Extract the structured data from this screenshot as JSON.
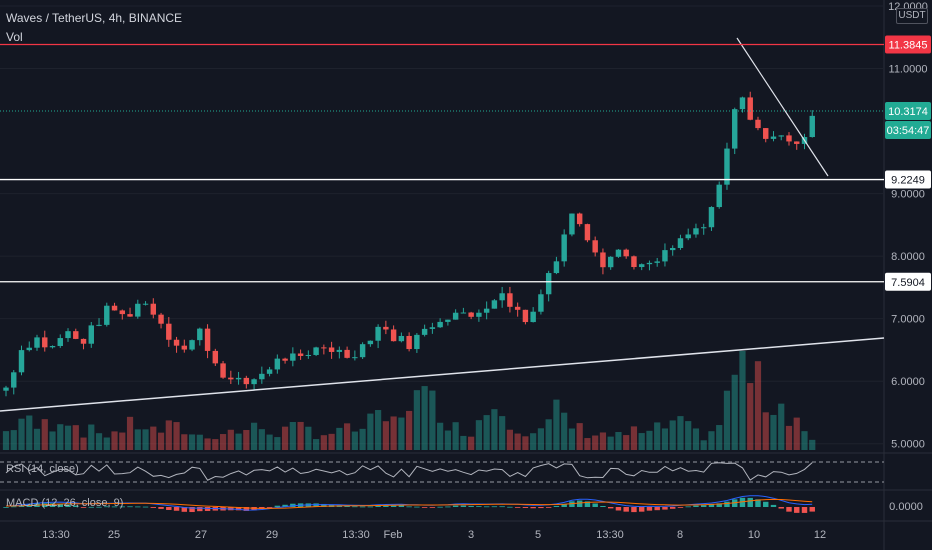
{
  "header": {
    "symbol_line": "Waves / TetherUS, 4h, BINANCE",
    "volume_label": "Vol",
    "currency_button": "USDT"
  },
  "price_axis": {
    "ticks": [
      "12.0000",
      "11.0000",
      "9.0000",
      "8.0000",
      "7.0000",
      "6.0000",
      "5.0000"
    ],
    "ticks_values": [
      12,
      11,
      9,
      8,
      7,
      6,
      5
    ],
    "line_labels": [
      {
        "text": "11.3845",
        "value": 11.3845,
        "color": "#f23645"
      },
      {
        "text": "9.2249",
        "value": 9.2249,
        "color": "#ffffff"
      },
      {
        "text": "7.5904",
        "value": 7.5904,
        "color": "#ffffff"
      }
    ],
    "last_price": "10.3174",
    "countdown": "03:54:47"
  },
  "time_axis": {
    "ticks": [
      "13:30",
      "25",
      "27",
      "29",
      "13:30",
      "Feb",
      "3",
      "5",
      "13:30",
      "8",
      "10",
      "12"
    ]
  },
  "indicators": {
    "rsi_label": "RSI (14, close)",
    "macd_label": "MACD (12, 26, close, 9)",
    "macd_value": "0.0000"
  },
  "colors": {
    "background": "#131722",
    "up": "#26a69a",
    "down": "#ef5350",
    "resistance": "#f23645",
    "support": "#ffffff",
    "last_price": "#22ab94"
  },
  "chart_data": {
    "type": "candlestick",
    "symbol": "Waves / TetherUS",
    "interval": "4h",
    "exchange": "BINANCE",
    "ylim": [
      4.9,
      12.0
    ],
    "horizontal_levels": [
      11.3845,
      9.2249,
      7.5904
    ],
    "last_price": 10.3174,
    "close_path": [
      5.9,
      6.5,
      6.7,
      6.5,
      6.8,
      6.6,
      6.9,
      7.2,
      7.0,
      7.3,
      7.1,
      6.7,
      6.5,
      6.8,
      6.3,
      6.0,
      5.95,
      6.1,
      6.3,
      6.4,
      6.3,
      6.6,
      6.5,
      6.4,
      6.6,
      6.9,
      6.7,
      6.6,
      6.8,
      7.0,
      7.1,
      7.0,
      7.2,
      7.4,
      7.2,
      6.9,
      7.6,
      8.0,
      8.8,
      8.3,
      7.9,
      8.1,
      7.9,
      7.8,
      8.0,
      8.2,
      8.4,
      8.5,
      9.3,
      10.6,
      10.2,
      9.8,
      10.0,
      9.7,
      10.3
    ],
    "volume_path": [
      0.2,
      0.35,
      0.25,
      0.3,
      0.4,
      0.22,
      0.2,
      0.18,
      0.25,
      0.3,
      0.2,
      0.25,
      0.22,
      0.15,
      0.18,
      0.2,
      0.22,
      0.25,
      0.2,
      0.22,
      0.25,
      0.18,
      0.2,
      0.22,
      0.25,
      0.35,
      0.3,
      0.6,
      0.55,
      0.5,
      0.25,
      0.2,
      0.4,
      0.6,
      0.3,
      0.2,
      0.2,
      0.45,
      0.25,
      0.2,
      0.18,
      0.15,
      0.2,
      0.18,
      0.25,
      0.3,
      0.2,
      0.15,
      0.35,
      1.0,
      0.8,
      0.55,
      0.5,
      0.35,
      0.1
    ]
  }
}
